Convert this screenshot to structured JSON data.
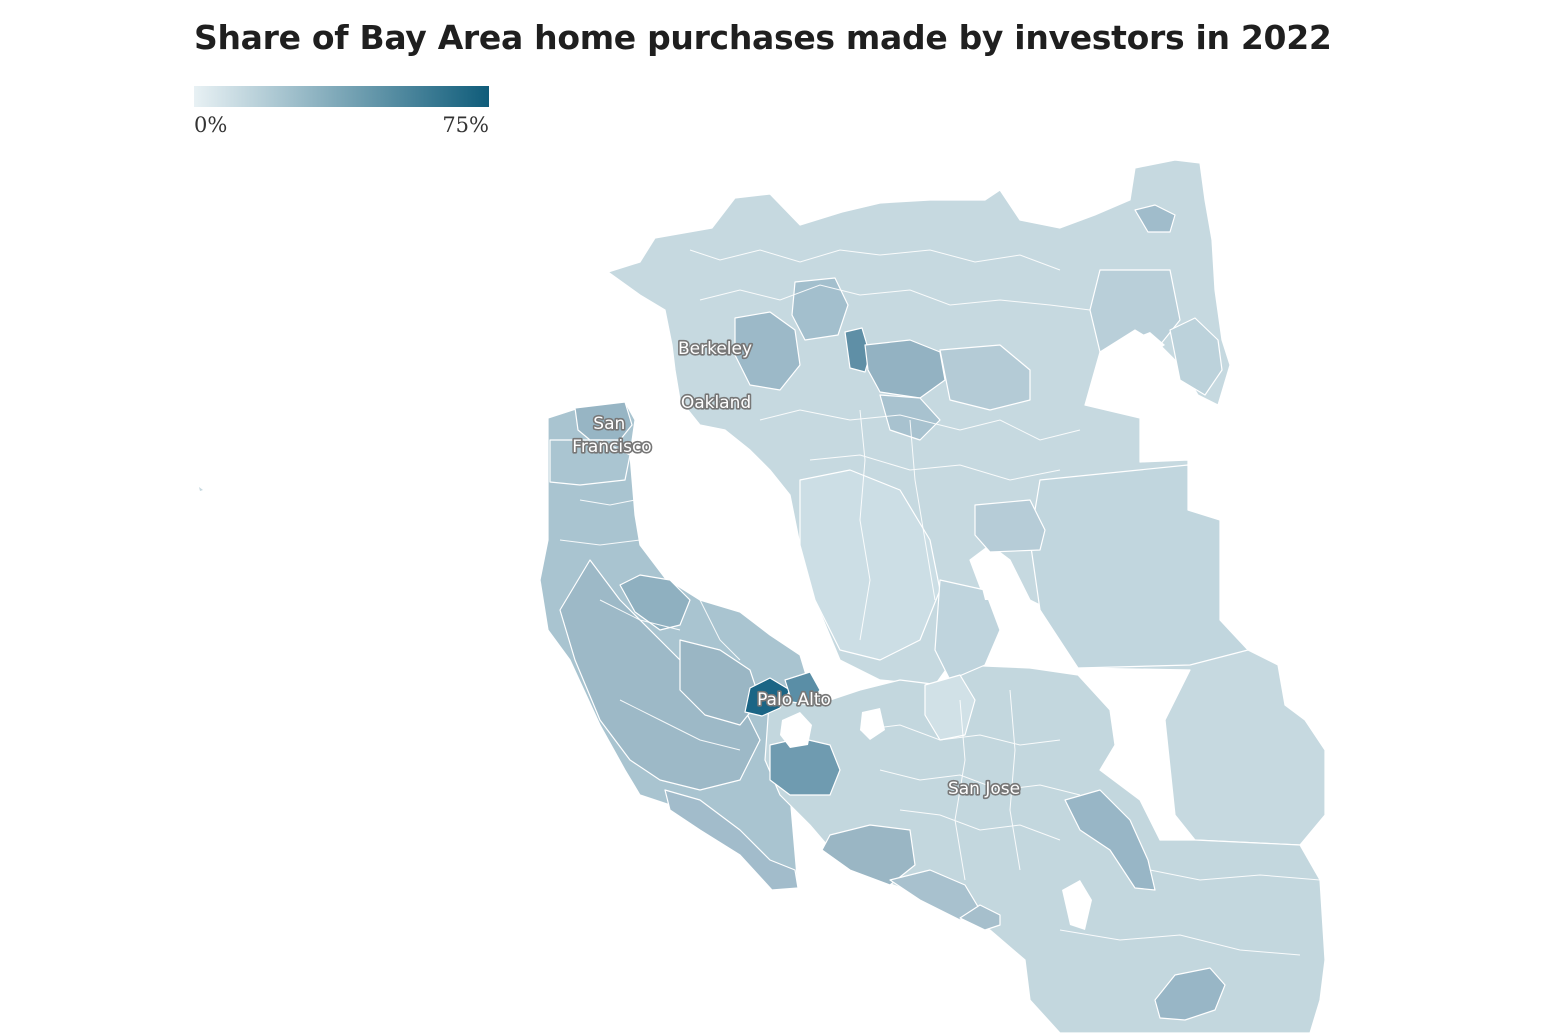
{
  "title": "Share of Bay Area home purchases made by investors in 2022",
  "legend": {
    "min_label": "0%",
    "max_label": "75%",
    "color_low": "#e8f1f4",
    "color_high": "#0f5c7a"
  },
  "map": {
    "base_fill": "#c6d9e0",
    "cities": [
      {
        "id": "berkeley",
        "lines": [
          "Berkeley"
        ]
      },
      {
        "id": "oakland",
        "lines": [
          "Oakland"
        ]
      },
      {
        "id": "san-francisco",
        "lines": [
          "San",
          "Francisco"
        ]
      },
      {
        "id": "palo-alto",
        "lines": [
          "Palo Alto"
        ]
      },
      {
        "id": "san-jose",
        "lines": [
          "San Jose"
        ]
      }
    ]
  }
}
